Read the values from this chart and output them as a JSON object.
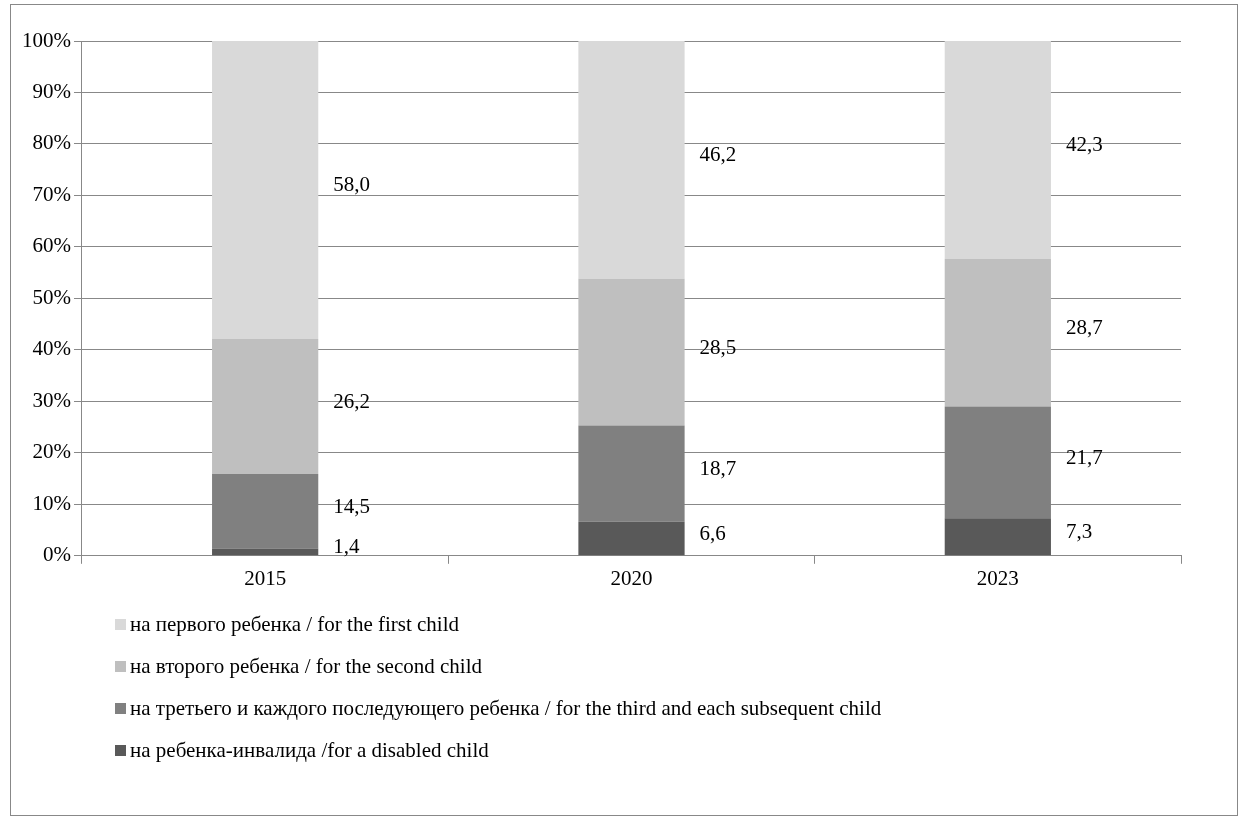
{
  "chart_data": {
    "type": "bar",
    "stacked": true,
    "categories": [
      "2015",
      "2020",
      "2023"
    ],
    "series": [
      {
        "name": "на ребенка-инвалида /for a disabled child",
        "color": "#595959",
        "values": [
          1.4,
          6.6,
          7.3
        ]
      },
      {
        "name": "на третьего и каждого последующего ребенка / for the third and each subsequent child",
        "color": "#808080",
        "values": [
          14.5,
          18.7,
          21.7
        ]
      },
      {
        "name": "на второго ребенка / for the second child",
        "color": "#bfbfbf",
        "values": [
          26.2,
          28.5,
          28.7
        ]
      },
      {
        "name": "на первого ребенка / for the first child",
        "color": "#d9d9d9",
        "values": [
          58.0,
          46.2,
          42.3
        ]
      }
    ],
    "value_labels": [
      [
        "1,4",
        "6,6",
        "7,3"
      ],
      [
        "14,5",
        "18,7",
        "21,7"
      ],
      [
        "26,2",
        "28,5",
        "28,7"
      ],
      [
        "58,0",
        "46,2",
        "42,3"
      ]
    ],
    "ylim": [
      0,
      100
    ],
    "yticks": [
      {
        "value": 0,
        "label": "0%"
      },
      {
        "value": 10,
        "label": "10%"
      },
      {
        "value": 20,
        "label": "20%"
      },
      {
        "value": 30,
        "label": "30%"
      },
      {
        "value": 40,
        "label": "40%"
      },
      {
        "value": 50,
        "label": "50%"
      },
      {
        "value": 60,
        "label": "60%"
      },
      {
        "value": 70,
        "label": "70%"
      },
      {
        "value": 80,
        "label": "80%"
      },
      {
        "value": 90,
        "label": "90%"
      },
      {
        "value": 100,
        "label": "100%"
      }
    ],
    "grid": "y",
    "legend": "bottom"
  }
}
